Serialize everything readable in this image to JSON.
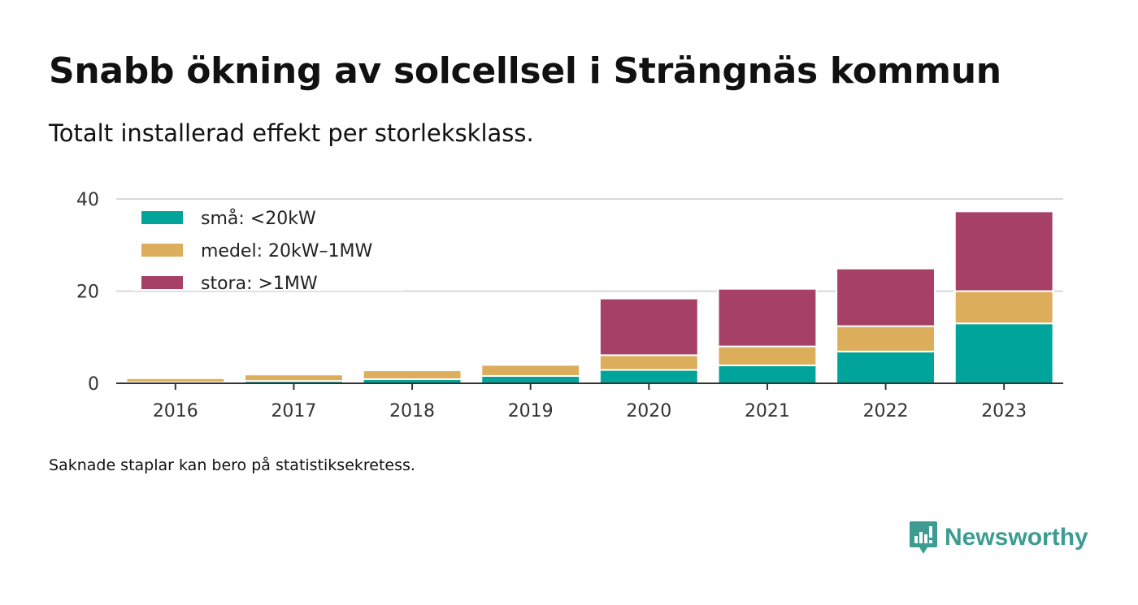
{
  "title": "Snabb ökning av solcellsel i Strängnäs kommun",
  "subtitle": "Totalt installerad effekt per storleksklass.",
  "footnote": "Saknade staplar kan bero på statistiksekretess.",
  "brand": {
    "name": "Newsworthy",
    "icon": "newsworthy-logo-icon",
    "color": "#3c9c92"
  },
  "chart_data": {
    "type": "bar",
    "stacked": true,
    "categories": [
      "2016",
      "2017",
      "2018",
      "2019",
      "2020",
      "2021",
      "2022",
      "2023"
    ],
    "series": [
      {
        "name": "små: <20kW",
        "color": "#00a49a",
        "values": [
          0.2,
          0.5,
          0.9,
          1.6,
          2.9,
          3.9,
          6.9,
          13.0
        ]
      },
      {
        "name": "medel: 20kW–1MW",
        "color": "#dcad5b",
        "values": [
          0.9,
          1.4,
          1.9,
          2.4,
          3.2,
          4.1,
          5.5,
          7.0
        ]
      },
      {
        "name": "stora: >1MW",
        "color": "#a64066",
        "values": [
          0,
          0,
          0,
          0,
          12.3,
          12.5,
          12.5,
          17.3
        ]
      }
    ],
    "yticks": [
      0,
      20,
      40
    ],
    "ylim": [
      0,
      40
    ],
    "grid": true,
    "legend": "top-left"
  }
}
